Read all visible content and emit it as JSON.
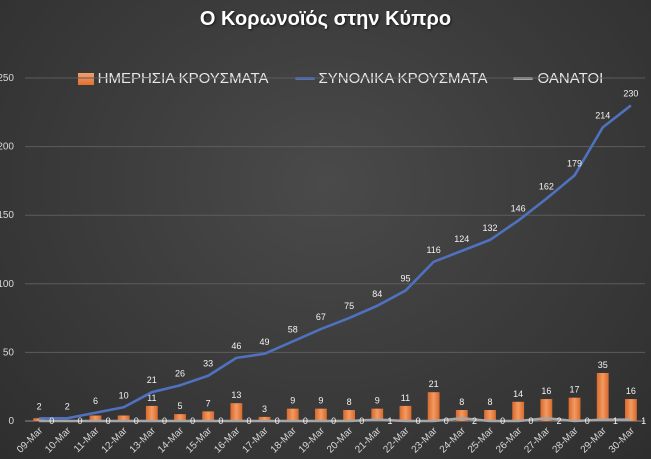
{
  "chart_data": {
    "type": "bar",
    "title": "Ο Κορωνοϊός στην Κύπρο",
    "categories": [
      "09-Mar",
      "10-Mar",
      "11-Mar",
      "12-Mar",
      "13-Mar",
      "14-Mar",
      "15-Mar",
      "16-Mar",
      "17-Mar",
      "18-Mar",
      "19-Mar",
      "20-Mar",
      "21-Mar",
      "22-Mar",
      "23-Mar",
      "24-Mar",
      "25-Mar",
      "26-Mar",
      "27-Mar",
      "28-Mar",
      "29-Mar",
      "30-Mar"
    ],
    "ylim": [
      0,
      250
    ],
    "yticks": [
      0,
      50,
      100,
      150,
      200,
      250
    ],
    "grid": true,
    "legend_position": "top",
    "series": [
      {
        "name": "ΗΜΕΡΗΣΙΑ ΚΡΟΥΣΜΑΤΑ",
        "kind": "bar",
        "color": "#e8793a",
        "values": [
          2,
          0,
          4,
          4,
          11,
          5,
          7,
          13,
          3,
          9,
          9,
          8,
          9,
          11,
          21,
          8,
          8,
          14,
          16,
          17,
          35,
          16
        ],
        "labels": [
          "",
          "",
          "",
          "",
          "11",
          "5",
          "7",
          "13",
          "3",
          "9",
          "9",
          "8",
          "9",
          "11",
          "21",
          "8",
          "8",
          "14",
          "16",
          "17",
          "35",
          "16"
        ]
      },
      {
        "name": "ΣΥΝΟΛΙΚΑ ΚΡΟΥΣΜΑΤΑ",
        "kind": "line",
        "color": "#4f71be",
        "values": [
          2,
          2,
          6,
          10,
          21,
          26,
          33,
          46,
          49,
          58,
          67,
          75,
          84,
          95,
          116,
          124,
          132,
          146,
          162,
          179,
          214,
          230
        ]
      },
      {
        "name": "ΘΑΝΑΤΟΙ",
        "kind": "line",
        "color": "#a5a5a5",
        "values": [
          0,
          0,
          0,
          0,
          0,
          0,
          0,
          0,
          0,
          0,
          0,
          0,
          1,
          0,
          0,
          2,
          0,
          0,
          2,
          0,
          1,
          1
        ],
        "labels": [
          "0",
          "0",
          "0",
          "0",
          "0",
          "0",
          "0",
          "0",
          "0",
          "0",
          "0",
          "0",
          "1",
          "0",
          "0",
          "2",
          "0",
          "0",
          "2",
          "0",
          "1",
          "1"
        ]
      }
    ]
  }
}
